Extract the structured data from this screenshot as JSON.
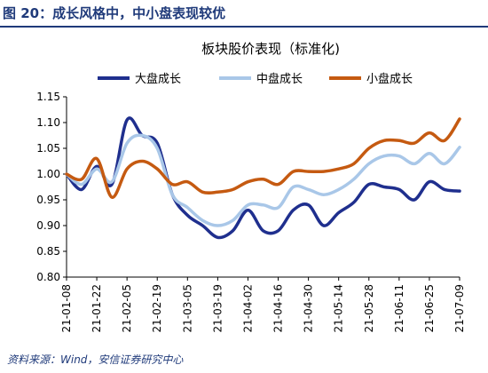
{
  "figure_title": "图 20：成长风格中，中小盘表现较优",
  "source_note": "资料来源：Wind，安信证券研究中心",
  "colors": {
    "title_blue": "#1f3a7a",
    "large_cap": "#1f2f8e",
    "mid_cap": "#a9c7e8",
    "small_cap": "#c55a11"
  },
  "chart_data": {
    "type": "line",
    "title": "板块股价表现（标准化)",
    "x_tick_labels": [
      "21-01-08",
      "21-01-22",
      "21-02-05",
      "21-02-19",
      "21-03-05",
      "21-03-19",
      "21-04-02",
      "21-04-16",
      "21-04-30",
      "21-05-14",
      "21-05-28",
      "21-06-11",
      "21-06-25",
      "21-07-09"
    ],
    "ylim": [
      0.8,
      1.15
    ],
    "y_ticks": [
      "0.80",
      "0.85",
      "0.90",
      "0.95",
      "1.00",
      "1.05",
      "1.10",
      "1.15"
    ],
    "legend_position": "top",
    "grid": false,
    "x": [
      "21-01-08",
      "21-01-15",
      "21-01-22",
      "21-01-29",
      "21-02-05",
      "21-02-12",
      "21-02-19",
      "21-02-26",
      "21-03-05",
      "21-03-12",
      "21-03-19",
      "21-03-26",
      "21-04-02",
      "21-04-09",
      "21-04-16",
      "21-04-23",
      "21-04-30",
      "21-05-07",
      "21-05-14",
      "21-05-21",
      "21-05-28",
      "21-06-04",
      "21-06-11",
      "21-06-18",
      "21-06-25",
      "21-07-02",
      "21-07-09"
    ],
    "series": [
      {
        "name": "大盘成长",
        "color": "#1f2f8e",
        "values": [
          1.0,
          0.97,
          1.015,
          0.98,
          1.105,
          1.075,
          1.06,
          0.96,
          0.92,
          0.9,
          0.877,
          0.89,
          0.93,
          0.89,
          0.89,
          0.93,
          0.94,
          0.9,
          0.925,
          0.945,
          0.98,
          0.975,
          0.97,
          0.95,
          0.985,
          0.97,
          0.967
        ]
      },
      {
        "name": "中盘成长",
        "color": "#a9c7e8",
        "values": [
          1.0,
          0.98,
          1.01,
          0.985,
          1.06,
          1.075,
          1.05,
          0.96,
          0.935,
          0.91,
          0.9,
          0.91,
          0.94,
          0.94,
          0.935,
          0.975,
          0.97,
          0.96,
          0.97,
          0.99,
          1.02,
          1.035,
          1.035,
          1.02,
          1.04,
          1.02,
          1.052
        ]
      },
      {
        "name": "小盘成长",
        "color": "#c55a11",
        "values": [
          1.0,
          0.99,
          1.03,
          0.955,
          1.01,
          1.025,
          1.01,
          0.98,
          0.985,
          0.965,
          0.965,
          0.97,
          0.985,
          0.99,
          0.98,
          1.005,
          1.005,
          1.005,
          1.01,
          1.02,
          1.05,
          1.065,
          1.065,
          1.06,
          1.08,
          1.065,
          1.107
        ]
      }
    ]
  }
}
